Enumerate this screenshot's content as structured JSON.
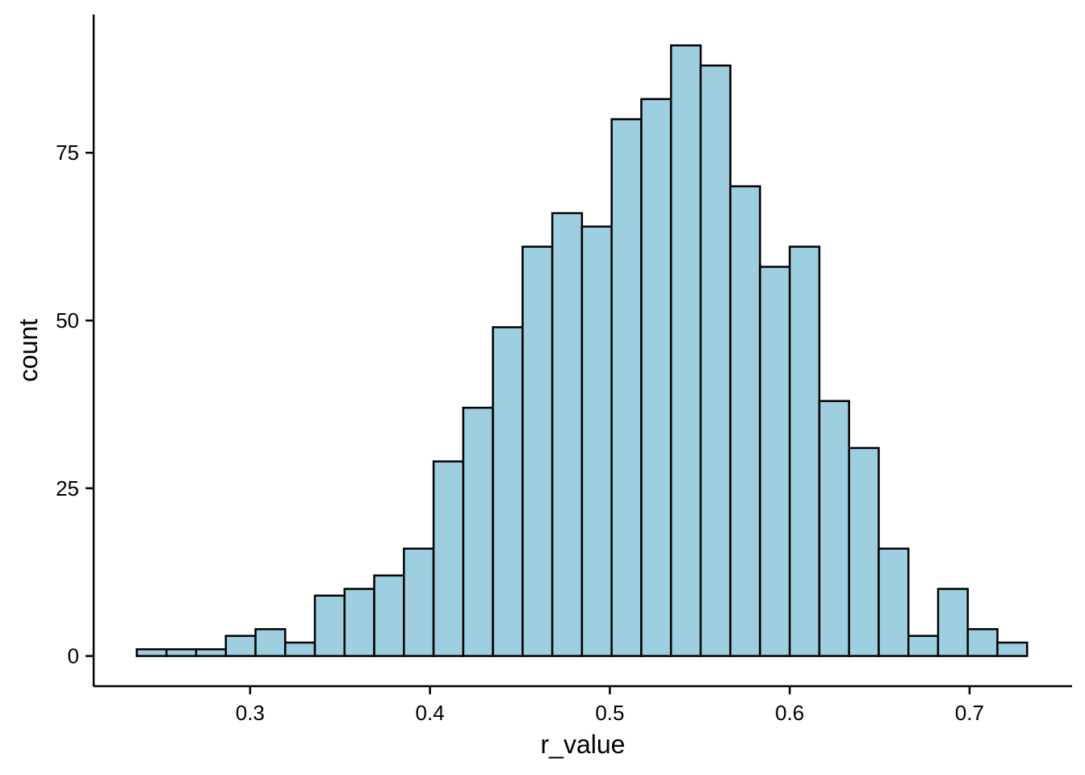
{
  "chart_data": {
    "type": "bar",
    "subtype": "histogram",
    "xlabel": "r_value",
    "ylabel": "count",
    "xlim": [
      0.213,
      0.757
    ],
    "ylim": [
      -4.5,
      95.6
    ],
    "x_ticks": [
      0.3,
      0.4,
      0.5,
      0.6,
      0.7
    ],
    "x_tick_labels": [
      "0.3",
      "0.4",
      "0.5",
      "0.6",
      "0.7"
    ],
    "y_ticks": [
      0,
      25,
      50,
      75
    ],
    "y_tick_labels": [
      "0",
      "25",
      "50",
      "75"
    ],
    "bin_width": 0.0165,
    "bin_start": 0.237,
    "counts": [
      1,
      1,
      1,
      3,
      4,
      2,
      9,
      10,
      12,
      16,
      29,
      37,
      49,
      61,
      66,
      64,
      80,
      83,
      91,
      88,
      70,
      58,
      61,
      38,
      31,
      16,
      3,
      10,
      4,
      2
    ],
    "grid": false,
    "legend": "none",
    "colors": {
      "bar_fill": "#9ecfe0",
      "bar_stroke": "#000000",
      "axis": "#000000"
    }
  }
}
